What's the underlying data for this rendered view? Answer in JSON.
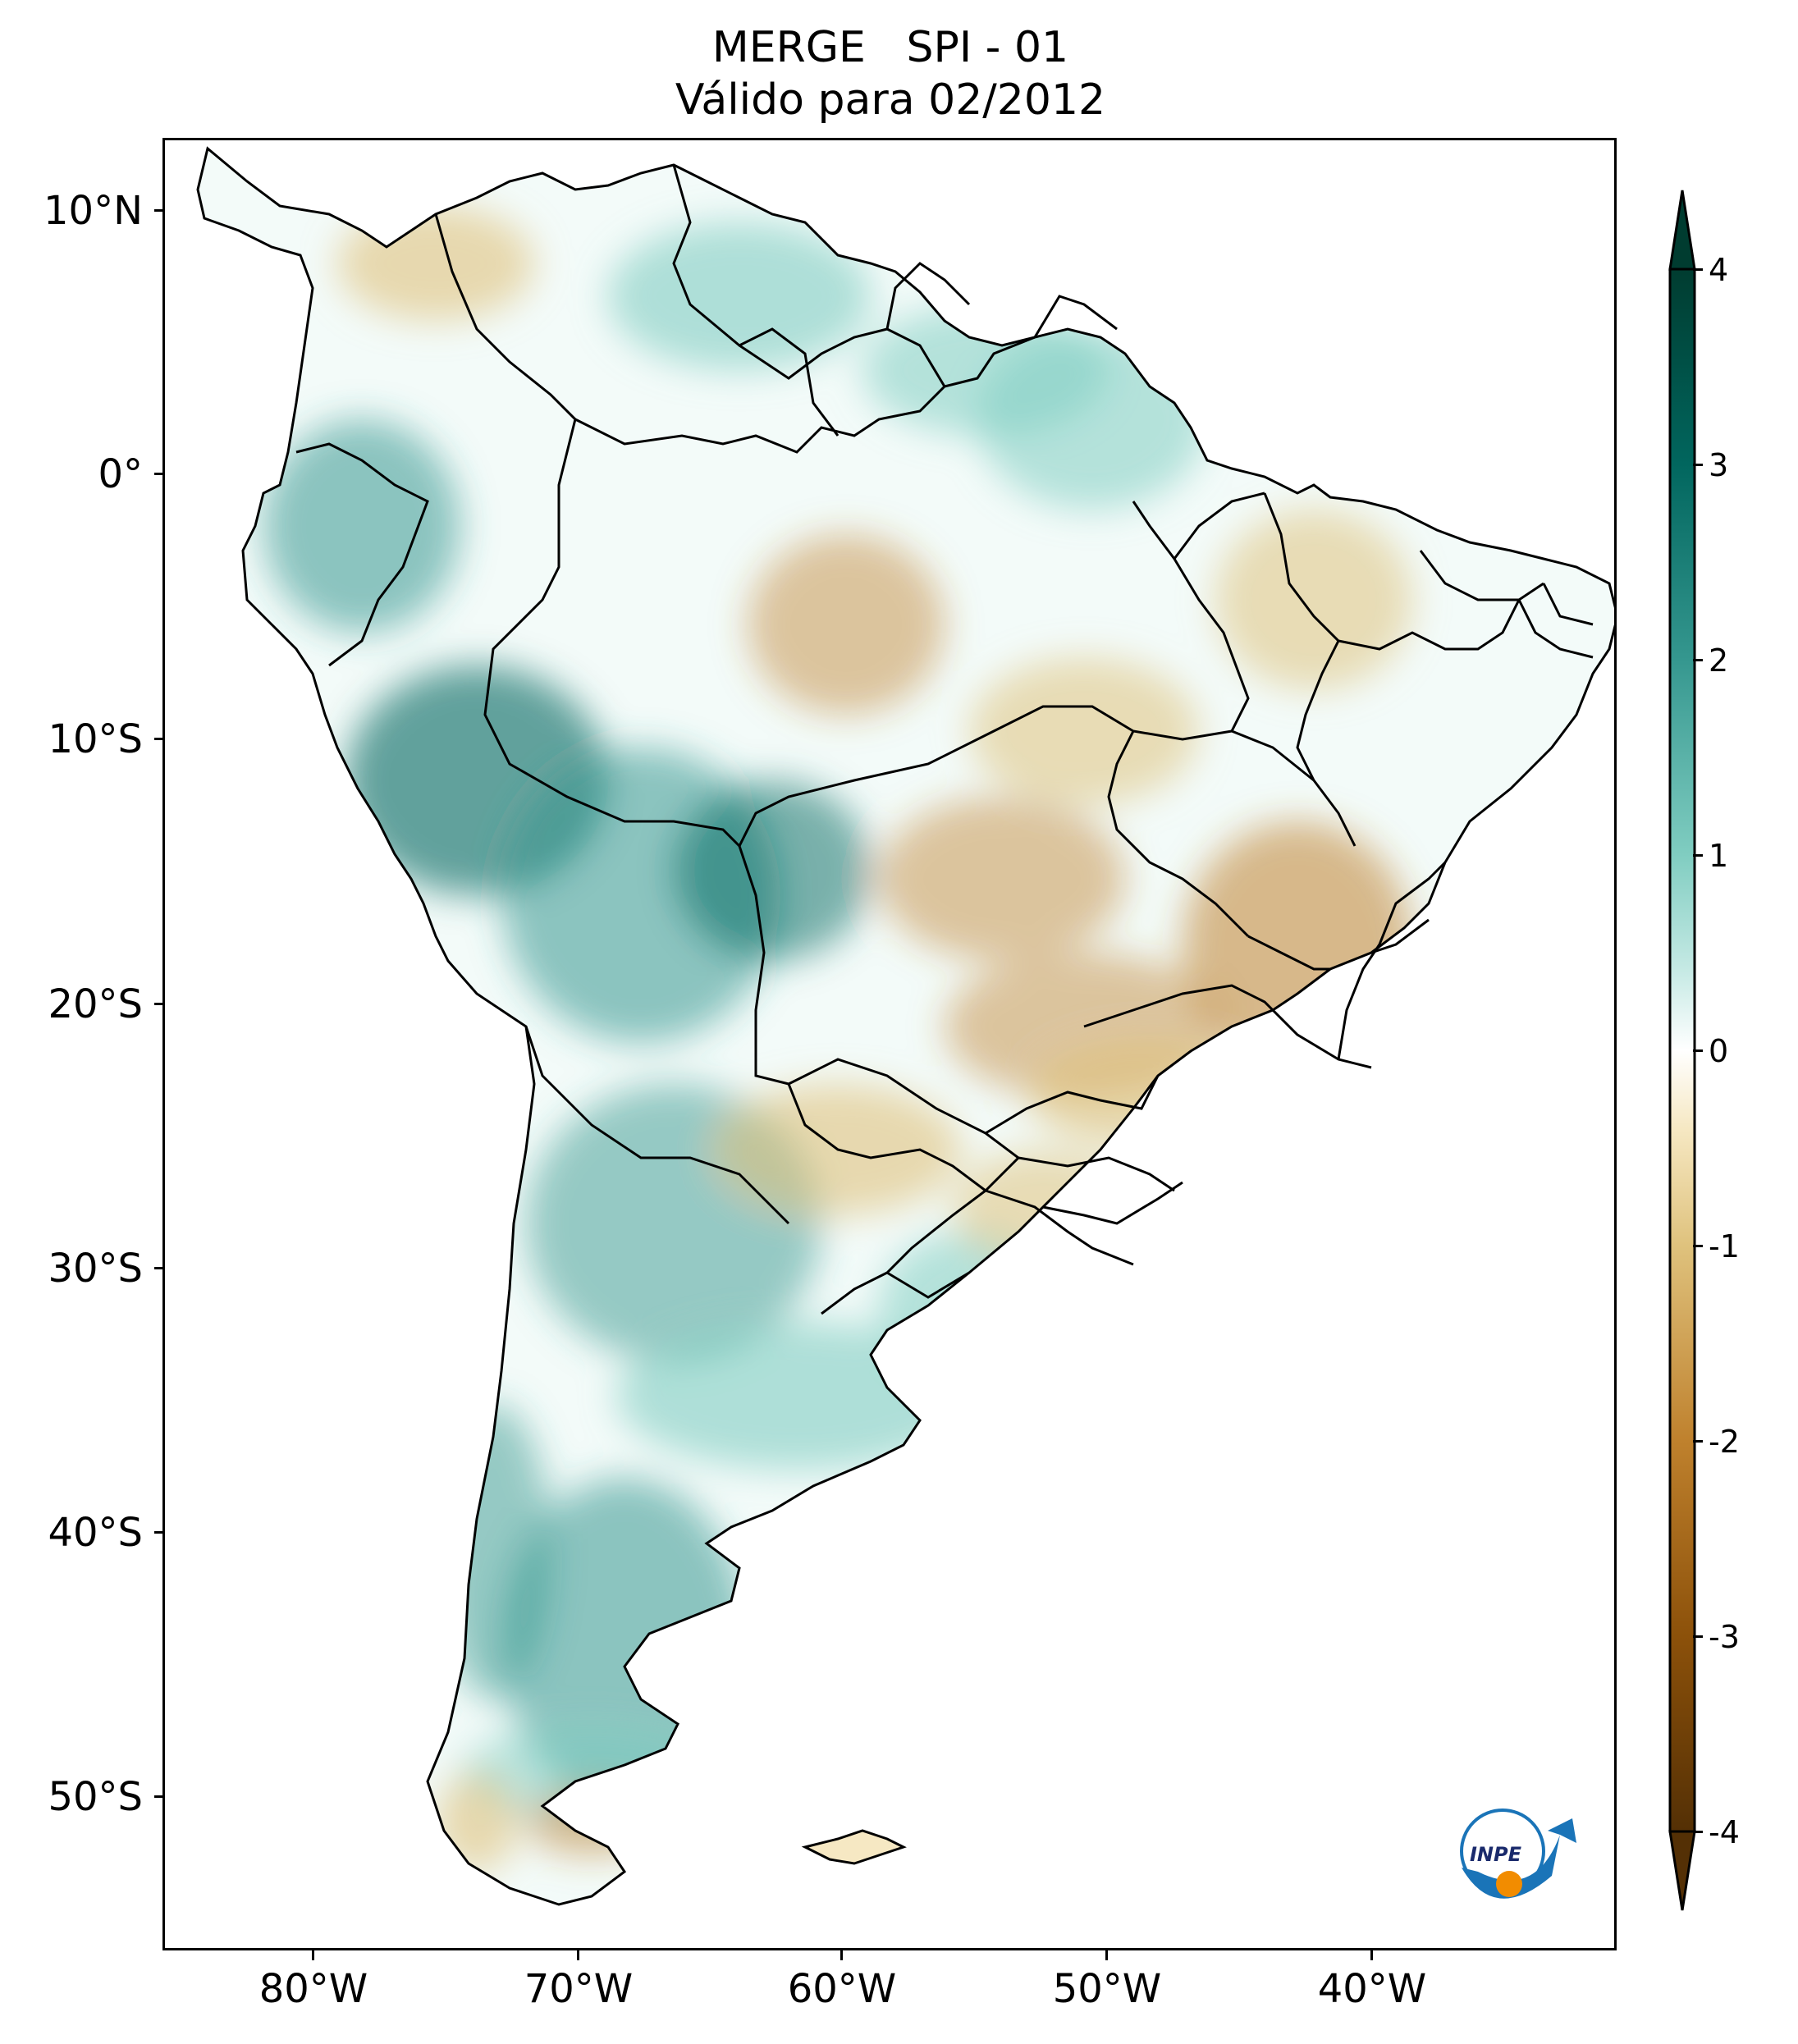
{
  "title": {
    "line1": "MERGE   SPI - 01",
    "line2": "Válido para 02/2012"
  },
  "map": {
    "region": "South America",
    "variable": "SPI - 01",
    "latitude_labels": [
      "10°N",
      "0°",
      "10°S",
      "20°S",
      "30°S",
      "40°S",
      "50°S"
    ],
    "longitude_labels": [
      "80°W",
      "70°W",
      "60°W",
      "50°W",
      "40°W"
    ],
    "logo_text": "INPE"
  },
  "colorbar": {
    "ticks": [
      "4",
      "3",
      "2",
      "1",
      "0",
      "-1",
      "-2",
      "-3",
      "-4"
    ],
    "colors": {
      "wet_max": "#003c30",
      "wet_strong": "#01665e",
      "wet_mid": "#35978f",
      "wet_light": "#80cdc1",
      "wet_pale": "#c7eae5",
      "neutral": "#ffffff",
      "dry_pale": "#f6e8c3",
      "dry_light": "#dfc27d",
      "dry_mid": "#bf812d",
      "dry_strong": "#8c510a",
      "dry_max": "#543005"
    }
  }
}
